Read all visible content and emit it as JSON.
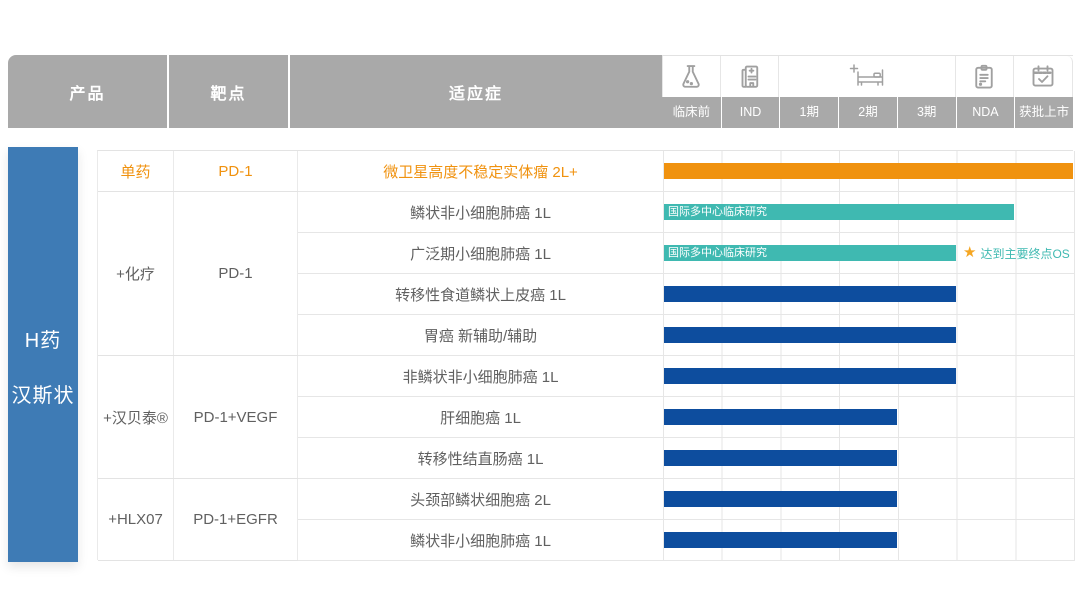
{
  "header": {
    "product_col": "产品",
    "target_col": "靶点",
    "indication_col": "适应症",
    "stage_labels": [
      "临床前",
      "IND",
      "1期",
      "2期",
      "3期",
      "NDA",
      "获批上市"
    ],
    "stage_icons": [
      "flask-icon",
      "ind-building-icon",
      "hospital-bed-icon",
      "nda-clipboard-icon",
      "approved-calendar-icon"
    ]
  },
  "sidebar": {
    "product_name_line1": "H药",
    "product_name_line2": "汉斯状"
  },
  "groups": [
    {
      "product": "单药",
      "target": "PD-1"
    },
    {
      "product": "+化疗",
      "target": "PD-1"
    },
    {
      "product": "+汉贝泰®",
      "target": "PD-1+VEGF"
    },
    {
      "product": "+HLX07",
      "target": "PD-1+EGFR"
    }
  ],
  "icons": {
    "star": "★"
  },
  "colors": {
    "header_gray": "#A9A9A9",
    "sidebar_blue": "#3E7BB5",
    "orange": "#F0920F",
    "teal": "#3FB9B1",
    "navy": "#0D4D9E",
    "grid_line": "#E6E6E6",
    "text_gray": "#606060",
    "star_gold": "#F5A623"
  },
  "chart_data": {
    "type": "bar",
    "subtype": "pipeline-gantt",
    "stages": [
      "临床前",
      "IND",
      "1期",
      "2期",
      "3期",
      "NDA",
      "获批上市"
    ],
    "rows": [
      {
        "group": "单药",
        "target": "PD-1",
        "indication": "微卫星高度不稳定实体瘤 2L+",
        "stages_spanned": 7,
        "stage_reached": "获批上市",
        "bar_color": "#F0920F",
        "highlight": true
      },
      {
        "group": "+化疗",
        "target": "PD-1",
        "indication": "鳞状非小细胞肺癌 1L",
        "stages_spanned": 6,
        "stage_reached": "NDA",
        "bar_color": "#3FB9B1",
        "bar_label": "国际多中心临床研究"
      },
      {
        "group": "+化疗",
        "target": "PD-1",
        "indication": "广泛期小细胞肺癌 1L",
        "stages_spanned": 5,
        "stage_reached": "3期",
        "bar_color": "#3FB9B1",
        "bar_label": "国际多中心临床研究",
        "annotation": "达到主要终点OS"
      },
      {
        "group": "+化疗",
        "target": "PD-1",
        "indication": "转移性食道鳞状上皮癌 1L",
        "stages_spanned": 5,
        "stage_reached": "3期",
        "bar_color": "#0D4D9E"
      },
      {
        "group": "+化疗",
        "target": "PD-1",
        "indication": "胃癌 新辅助/辅助",
        "stages_spanned": 5,
        "stage_reached": "3期",
        "bar_color": "#0D4D9E"
      },
      {
        "group": "+汉贝泰®",
        "target": "PD-1+VEGF",
        "indication": "非鳞状非小细胞肺癌 1L",
        "stages_spanned": 5,
        "stage_reached": "3期",
        "bar_color": "#0D4D9E"
      },
      {
        "group": "+汉贝泰®",
        "target": "PD-1+VEGF",
        "indication": "肝细胞癌 1L",
        "stages_spanned": 4,
        "stage_reached": "2期",
        "bar_color": "#0D4D9E"
      },
      {
        "group": "+汉贝泰®",
        "target": "PD-1+VEGF",
        "indication": "转移性结直肠癌 1L",
        "stages_spanned": 4,
        "stage_reached": "2期",
        "bar_color": "#0D4D9E"
      },
      {
        "group": "+HLX07",
        "target": "PD-1+EGFR",
        "indication": "头颈部鳞状细胞癌 2L",
        "stages_spanned": 4,
        "stage_reached": "2期",
        "bar_color": "#0D4D9E"
      },
      {
        "group": "+HLX07",
        "target": "PD-1+EGFR",
        "indication": "鳞状非小细胞肺癌 1L",
        "stages_spanned": 4,
        "stage_reached": "2期",
        "bar_color": "#0D4D9E"
      }
    ],
    "legend": "none",
    "grid": true
  }
}
